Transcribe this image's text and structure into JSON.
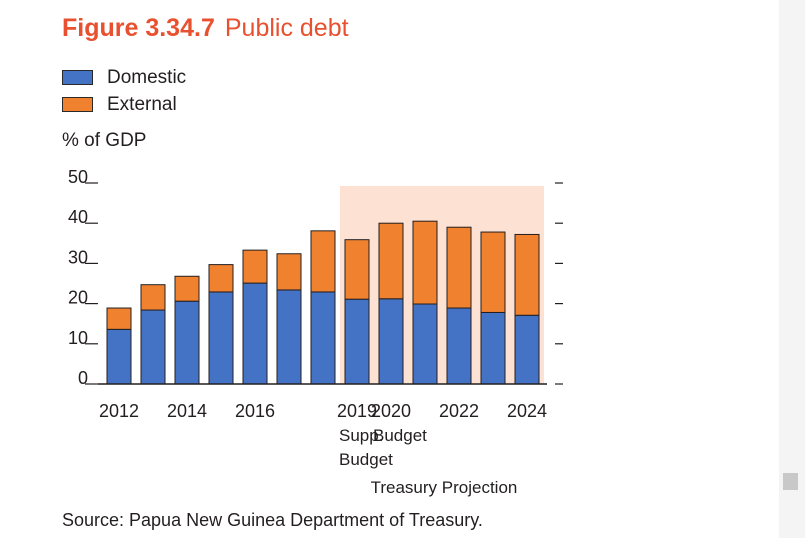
{
  "figure": {
    "number": "Figure 3.34.7",
    "title": "Public debt",
    "source": "Source: Papua New Guinea Department of Treasury."
  },
  "chart_data": {
    "type": "bar",
    "stacked": true,
    "unit_label": "% of GDP",
    "ylim": [
      0,
      50
    ],
    "yticks": [
      0,
      10,
      20,
      30,
      40,
      50
    ],
    "grid": false,
    "legend_position": "top-left",
    "categories": [
      "2012",
      "2013",
      "2014",
      "2015",
      "2016",
      "2017",
      "2018",
      "2019",
      "2020",
      "2021",
      "2022",
      "2023",
      "2024"
    ],
    "x_tick_labels": [
      {
        "index": 0,
        "lines": [
          "2012"
        ]
      },
      {
        "index": 2,
        "lines": [
          "2014"
        ]
      },
      {
        "index": 4,
        "lines": [
          "2016"
        ]
      },
      {
        "index": 7,
        "lines": [
          "2019",
          "Supp.",
          "Budget"
        ]
      },
      {
        "index": 8,
        "lines": [
          "2020",
          "Budget"
        ]
      },
      {
        "index": 10,
        "lines": [
          "2022"
        ]
      },
      {
        "index": 12,
        "lines": [
          "2024"
        ]
      }
    ],
    "series": [
      {
        "name": "Domestic",
        "color": "#4472c4",
        "values": [
          13.6,
          18.4,
          20.6,
          22.9,
          25.1,
          23.4,
          22.9,
          21.1,
          21.2,
          19.9,
          18.9,
          17.8,
          17.1
        ]
      },
      {
        "name": "External",
        "color": "#f0812f",
        "values": [
          5.3,
          6.3,
          6.2,
          6.8,
          8.2,
          9.0,
          15.2,
          14.8,
          18.8,
          20.6,
          20.1,
          20.0,
          20.1
        ]
      }
    ],
    "projection": {
      "from_index": 7,
      "to_index": 12,
      "label": "Treasury Projection",
      "color": "#fde1d3"
    }
  }
}
